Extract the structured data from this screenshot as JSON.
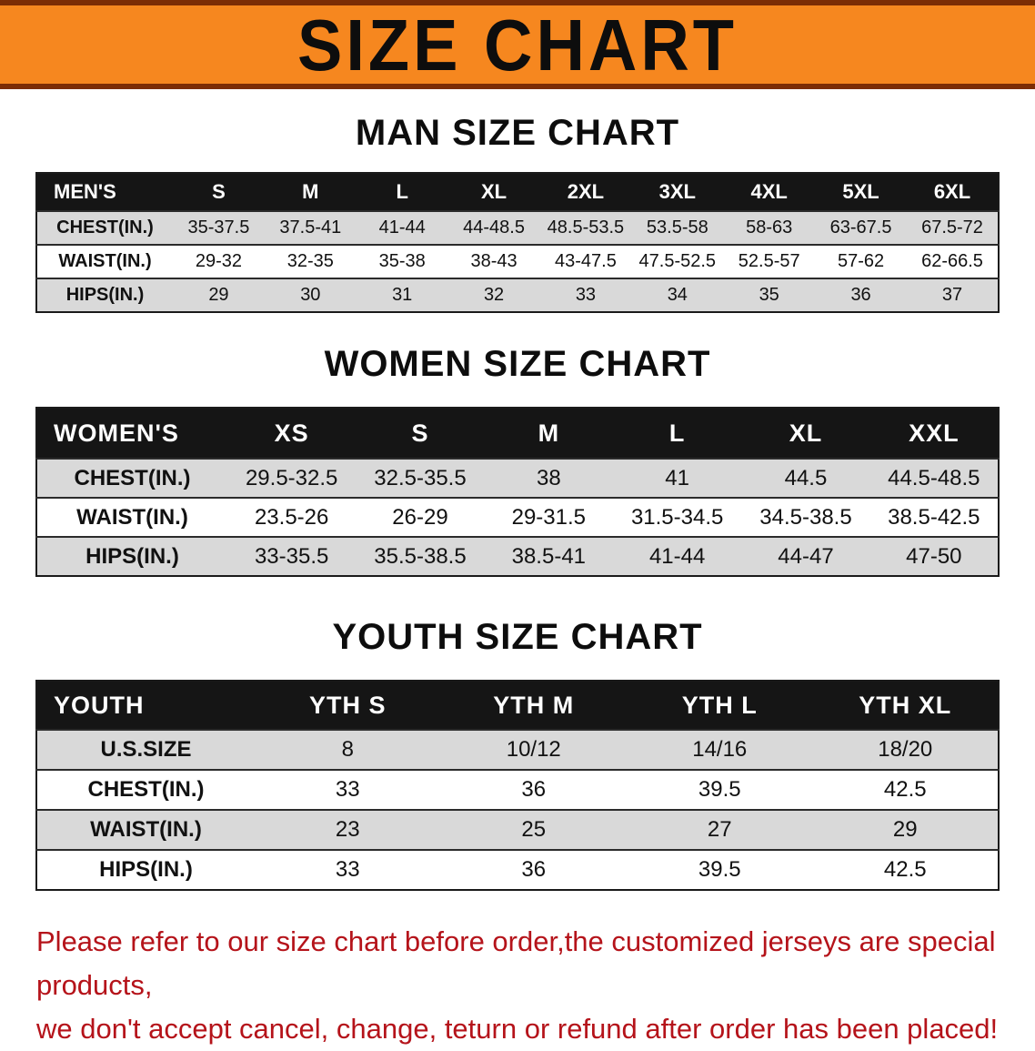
{
  "banner": {
    "title": "SIZE CHART"
  },
  "men": {
    "heading": "MAN SIZE CHART",
    "table": {
      "header": [
        "MEN'S",
        "S",
        "M",
        "L",
        "XL",
        "2XL",
        "3XL",
        "4XL",
        "5XL",
        "6XL"
      ],
      "rows": [
        {
          "label": "CHEST(IN.)",
          "values": [
            "35-37.5",
            "37.5-41",
            "41-44",
            "44-48.5",
            "48.5-53.5",
            "53.5-58",
            "58-63",
            "63-67.5",
            "67.5-72"
          ]
        },
        {
          "label": "WAIST(IN.)",
          "values": [
            "29-32",
            "32-35",
            "35-38",
            "38-43",
            "43-47.5",
            "47.5-52.5",
            "52.5-57",
            "57-62",
            "62-66.5"
          ]
        },
        {
          "label": "HIPS(IN.)",
          "values": [
            "29",
            "30",
            "31",
            "32",
            "33",
            "34",
            "35",
            "36",
            "37"
          ]
        }
      ]
    }
  },
  "women": {
    "heading": "WOMEN SIZE CHART",
    "table": {
      "header": [
        "WOMEN'S",
        "XS",
        "S",
        "M",
        "L",
        "XL",
        "XXL"
      ],
      "rows": [
        {
          "label": "CHEST(IN.)",
          "values": [
            "29.5-32.5",
            "32.5-35.5",
            "38",
            "41",
            "44.5",
            "44.5-48.5"
          ]
        },
        {
          "label": "WAIST(IN.)",
          "values": [
            "23.5-26",
            "26-29",
            "29-31.5",
            "31.5-34.5",
            "34.5-38.5",
            "38.5-42.5"
          ]
        },
        {
          "label": "HIPS(IN.)",
          "values": [
            "33-35.5",
            "35.5-38.5",
            "38.5-41",
            "41-44",
            "44-47",
            "47-50"
          ]
        }
      ]
    }
  },
  "youth": {
    "heading": "YOUTH SIZE CHART",
    "table": {
      "header": [
        "YOUTH",
        "YTH S",
        "YTH M",
        "YTH L",
        "YTH XL"
      ],
      "rows": [
        {
          "label": "U.S.SIZE",
          "values": [
            "8",
            "10/12",
            "14/16",
            "18/20"
          ]
        },
        {
          "label": "CHEST(IN.)",
          "values": [
            "33",
            "36",
            "39.5",
            "42.5"
          ]
        },
        {
          "label": "WAIST(IN.)",
          "values": [
            "23",
            "25",
            "27",
            "29"
          ]
        },
        {
          "label": "HIPS(IN.)",
          "values": [
            "33",
            "36",
            "39.5",
            "42.5"
          ]
        }
      ]
    }
  },
  "footer": {
    "line1": "Please refer to our size chart before order,the customized jerseys are special products,",
    "line2": "we don't accept cancel, change, teturn or refund after order has been placed!"
  },
  "colors": {
    "banner_orange": "#f6871f",
    "banner_border": "#7c2d05",
    "table_header_black": "#151515",
    "row_gray": "#d9d9d9",
    "notice_red": "#b5131a"
  }
}
